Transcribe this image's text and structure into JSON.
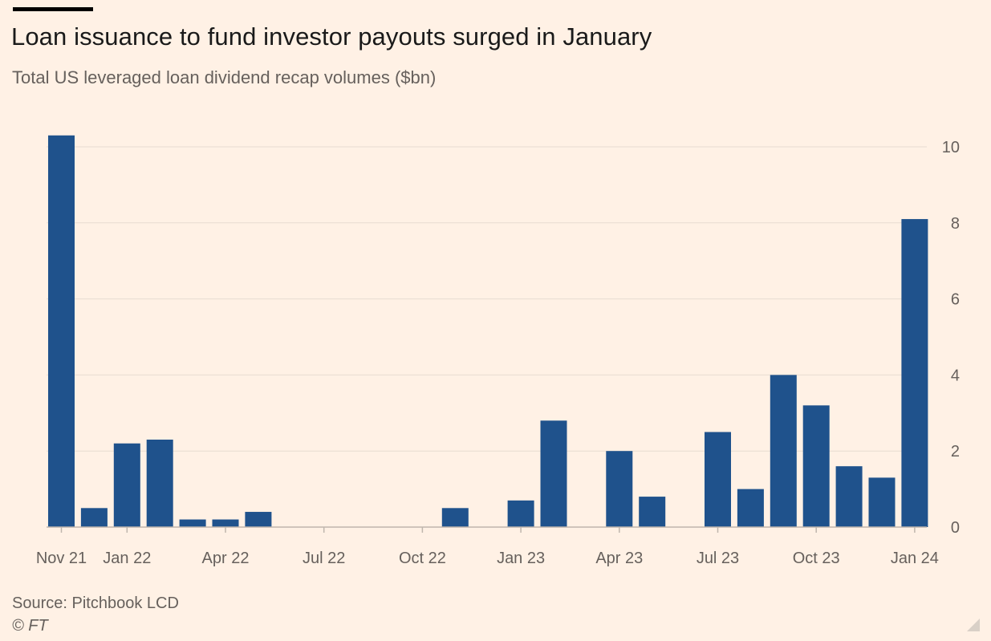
{
  "header": {
    "title": "Loan issuance to fund investor payouts surged in January",
    "subtitle": "Total US leveraged loan dividend recap volumes ($bn)"
  },
  "footer": {
    "source": "Source: Pitchbook LCD",
    "copyright": "© FT"
  },
  "colors": {
    "bar": "#1f528c",
    "background": "#fff1e5",
    "grid": "#e7dcd1",
    "axis": "#bfb6ad",
    "text": "#66605c"
  },
  "chart_data": {
    "type": "bar",
    "title": "Loan issuance to fund investor payouts surged in January",
    "subtitle": "Total US leveraged loan dividend recap volumes ($bn)",
    "xlabel": "",
    "ylabel": "",
    "y_axis_position": "right",
    "grid": true,
    "ylim": [
      0,
      10
    ],
    "yticks": [
      0,
      2,
      4,
      6,
      8,
      10
    ],
    "categories": [
      "Nov 21",
      "Dec 21",
      "Jan 22",
      "Feb 22",
      "Mar 22",
      "Apr 22",
      "May 22",
      "Jun 22",
      "Jul 22",
      "Aug 22",
      "Sep 22",
      "Oct 22",
      "Nov 22",
      "Dec 22",
      "Jan 23",
      "Feb 23",
      "Mar 23",
      "Apr 23",
      "May 23",
      "Jun 23",
      "Jul 23",
      "Aug 23",
      "Sep 23",
      "Oct 23",
      "Nov 23",
      "Dec 23",
      "Jan 24"
    ],
    "values": [
      10.3,
      0.5,
      2.2,
      2.3,
      0.2,
      0.2,
      0.4,
      0,
      0,
      0,
      0,
      0,
      0.5,
      0,
      0.7,
      2.8,
      0,
      2.0,
      0.8,
      0,
      2.5,
      1.0,
      4.0,
      3.2,
      1.6,
      1.3,
      8.1
    ],
    "xtick_labels": [
      {
        "index": 0,
        "label": "Nov 21"
      },
      {
        "index": 2,
        "label": "Jan 22"
      },
      {
        "index": 5,
        "label": "Apr 22"
      },
      {
        "index": 8,
        "label": "Jul 22"
      },
      {
        "index": 11,
        "label": "Oct 22"
      },
      {
        "index": 14,
        "label": "Jan 23"
      },
      {
        "index": 17,
        "label": "Apr 23"
      },
      {
        "index": 20,
        "label": "Jul 23"
      },
      {
        "index": 23,
        "label": "Oct 23"
      },
      {
        "index": 26,
        "label": "Jan 24"
      }
    ]
  }
}
